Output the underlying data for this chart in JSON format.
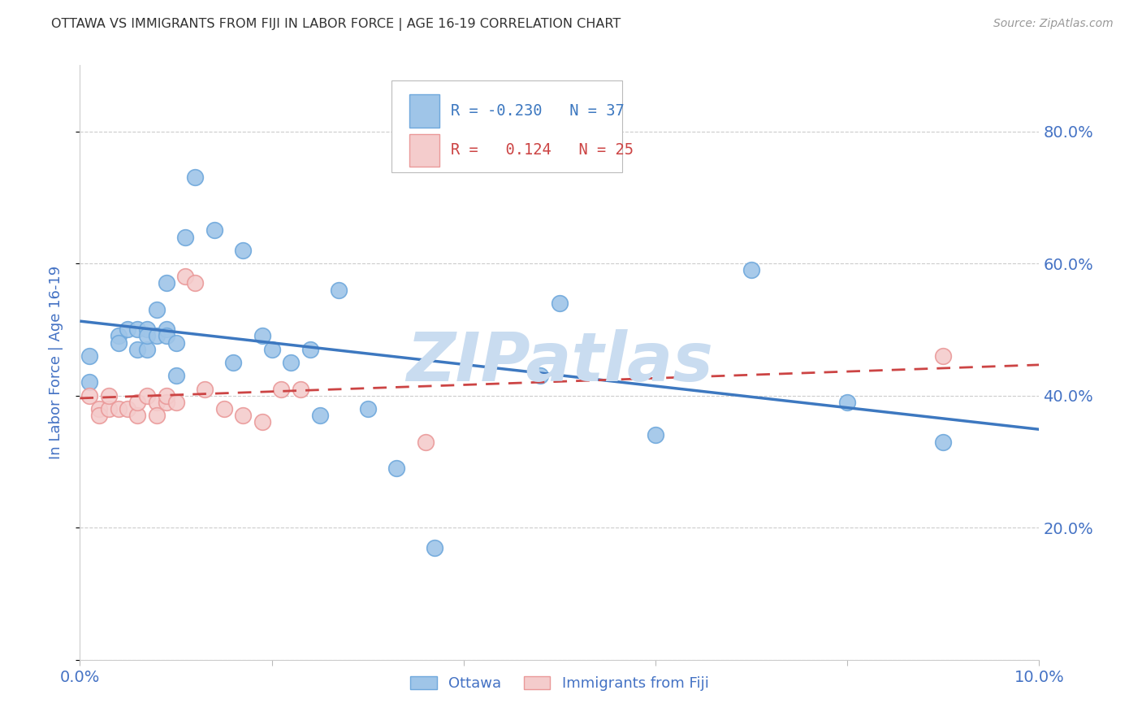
{
  "title": "OTTAWA VS IMMIGRANTS FROM FIJI IN LABOR FORCE | AGE 16-19 CORRELATION CHART",
  "source": "Source: ZipAtlas.com",
  "ylabel": "In Labor Force | Age 16-19",
  "legend_blue_R": "-0.230",
  "legend_blue_N": "37",
  "legend_pink_R": "0.124",
  "legend_pink_N": "25",
  "xlim": [
    0.0,
    0.1
  ],
  "ylim": [
    0.0,
    0.9
  ],
  "yticks": [
    0.0,
    0.2,
    0.4,
    0.6,
    0.8
  ],
  "ytick_labels_right": [
    "",
    "20.0%",
    "40.0%",
    "60.0%",
    "80.0%"
  ],
  "xticks": [
    0.0,
    0.02,
    0.04,
    0.06,
    0.08,
    0.1
  ],
  "xtick_labels": [
    "0.0%",
    "",
    "",
    "",
    "",
    "10.0%"
  ],
  "ottawa_x": [
    0.001,
    0.001,
    0.004,
    0.004,
    0.005,
    0.006,
    0.006,
    0.007,
    0.007,
    0.007,
    0.008,
    0.008,
    0.009,
    0.009,
    0.009,
    0.01,
    0.01,
    0.011,
    0.012,
    0.014,
    0.016,
    0.017,
    0.019,
    0.02,
    0.022,
    0.024,
    0.025,
    0.027,
    0.03,
    0.033,
    0.037,
    0.048,
    0.05,
    0.06,
    0.07,
    0.08,
    0.09
  ],
  "ottawa_y": [
    0.46,
    0.42,
    0.49,
    0.48,
    0.5,
    0.5,
    0.47,
    0.5,
    0.47,
    0.49,
    0.53,
    0.49,
    0.5,
    0.49,
    0.57,
    0.48,
    0.43,
    0.64,
    0.73,
    0.65,
    0.45,
    0.62,
    0.49,
    0.47,
    0.45,
    0.47,
    0.37,
    0.56,
    0.38,
    0.29,
    0.17,
    0.43,
    0.54,
    0.34,
    0.59,
    0.39,
    0.33
  ],
  "fiji_x": [
    0.001,
    0.002,
    0.002,
    0.003,
    0.003,
    0.004,
    0.005,
    0.006,
    0.006,
    0.007,
    0.008,
    0.008,
    0.009,
    0.009,
    0.01,
    0.011,
    0.012,
    0.013,
    0.015,
    0.017,
    0.019,
    0.021,
    0.023,
    0.036,
    0.09
  ],
  "fiji_y": [
    0.4,
    0.38,
    0.37,
    0.38,
    0.4,
    0.38,
    0.38,
    0.37,
    0.39,
    0.4,
    0.39,
    0.37,
    0.39,
    0.4,
    0.39,
    0.58,
    0.57,
    0.41,
    0.38,
    0.37,
    0.36,
    0.41,
    0.41,
    0.33,
    0.46
  ],
  "blue_marker_color": "#9FC5E8",
  "blue_edge_color": "#6FA8DC",
  "pink_marker_color": "#F4CCCC",
  "pink_edge_color": "#EA9999",
  "blue_line_color": "#3D78C0",
  "pink_line_color": "#CC4444",
  "axis_label_color": "#4472C4",
  "tick_label_color": "#4472C4",
  "grid_color": "#CCCCCC",
  "title_color": "#333333",
  "source_color": "#999999",
  "watermark_text": "ZIPatlas",
  "watermark_color": "#C9DCF0",
  "bg_color": "#FFFFFF",
  "legend_box_edge": "#BBBBBB"
}
